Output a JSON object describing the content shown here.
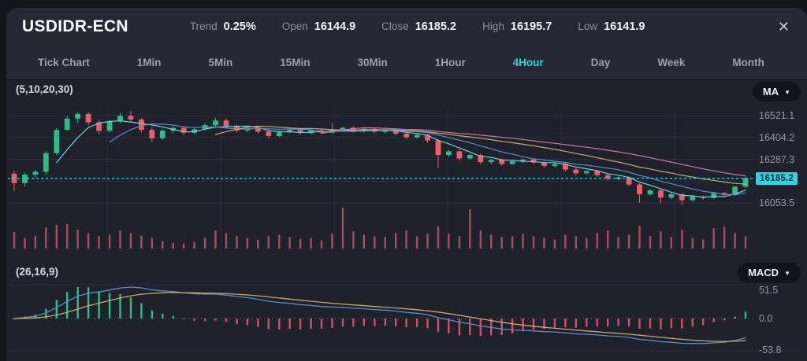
{
  "header": {
    "symbol": "USDIDR-ECN",
    "stats": [
      {
        "label": "Trend",
        "value": "0.25%"
      },
      {
        "label": "Open",
        "value": "16144.9"
      },
      {
        "label": "Close",
        "value": "16185.2"
      },
      {
        "label": "High",
        "value": "16195.7"
      },
      {
        "label": "Low",
        "value": "16141.9"
      }
    ],
    "close_icon": "✕"
  },
  "tabs": [
    {
      "label": "Tick Chart",
      "active": false
    },
    {
      "label": "1Min",
      "active": false
    },
    {
      "label": "5Min",
      "active": false
    },
    {
      "label": "15Min",
      "active": false
    },
    {
      "label": "30Min",
      "active": false
    },
    {
      "label": "1Hour",
      "active": false
    },
    {
      "label": "4Hour",
      "active": true
    },
    {
      "label": "Day",
      "active": false
    },
    {
      "label": "Week",
      "active": false
    },
    {
      "label": "Month",
      "active": false
    }
  ],
  "main_chart": {
    "params_label": "(5,10,20,30)",
    "indicator_button": {
      "label": "MA",
      "icon": "chevron-down"
    },
    "chevron": "▼",
    "axis_labels": [
      "16521.1",
      "16404.2",
      "16287.3",
      "16053.5"
    ],
    "current_price_label": "16185.2"
  },
  "macd_panel": {
    "params_label": "(26,16,9)",
    "indicator_button": {
      "label": "MACD",
      "icon": "chevron-down"
    },
    "chevron": "▼",
    "axis_labels": [
      "51.5",
      "0.0",
      "-53.8"
    ]
  },
  "colors": {
    "outer_bg": "#15161c",
    "window_bg": "#262833",
    "chart_bg": "#1f212b",
    "grid": "#2b2e3a",
    "vgrid": "#272a36",
    "accent_cyan": "#2ed3e8",
    "candle_up": "#2ebd85",
    "candle_down": "#ef5f67",
    "volume_bar": "#a6505e",
    "ma_lines": [
      "#6ccfe0",
      "#5b8dc9",
      "#c9a96d",
      "#c778a8"
    ],
    "macd_line": "#5b8dc9",
    "macd_signal": "#c9a96d",
    "hist_up": "#2ebd85",
    "hist_down": "#d94f5f",
    "zero_line": "#6b7080"
  },
  "chart_data": {
    "type": "candlestick",
    "symbol": "USDIDR-ECN",
    "timeframe": "4Hour",
    "ohlc_note": "candles are [open, high, low, close]",
    "candles": [
      [
        16210,
        16225,
        16115,
        16160
      ],
      [
        16160,
        16215,
        16140,
        16205
      ],
      [
        16205,
        16230,
        16190,
        16220
      ],
      [
        16220,
        16330,
        16205,
        16320
      ],
      [
        16320,
        16455,
        16310,
        16445
      ],
      [
        16445,
        16520,
        16440,
        16505
      ],
      [
        16505,
        16540,
        16480,
        16530
      ],
      [
        16530,
        16540,
        16470,
        16485
      ],
      [
        16485,
        16500,
        16420,
        16440
      ],
      [
        16440,
        16500,
        16430,
        16490
      ],
      [
        16490,
        16535,
        16480,
        16520
      ],
      [
        16520,
        16545,
        16490,
        16500
      ],
      [
        16500,
        16510,
        16430,
        16445
      ],
      [
        16445,
        16460,
        16380,
        16400
      ],
      [
        16400,
        16450,
        16390,
        16440
      ],
      [
        16440,
        16465,
        16425,
        16455
      ],
      [
        16455,
        16465,
        16415,
        16430
      ],
      [
        16430,
        16455,
        16420,
        16448
      ],
      [
        16448,
        16480,
        16440,
        16470
      ],
      [
        16470,
        16510,
        16460,
        16495
      ],
      [
        16495,
        16505,
        16450,
        16465
      ],
      [
        16465,
        16475,
        16430,
        16442
      ],
      [
        16442,
        16460,
        16432,
        16452
      ],
      [
        16452,
        16462,
        16425,
        16435
      ],
      [
        16435,
        16445,
        16400,
        16412
      ],
      [
        16412,
        16440,
        16405,
        16432
      ],
      [
        16432,
        16452,
        16425,
        16445
      ],
      [
        16445,
        16455,
        16418,
        16428
      ],
      [
        16428,
        16448,
        16420,
        16442
      ],
      [
        16442,
        16450,
        16420,
        16430
      ],
      [
        16430,
        16482,
        16425,
        16448
      ],
      [
        16448,
        16462,
        16438,
        16456
      ],
      [
        16456,
        16464,
        16430,
        16438
      ],
      [
        16438,
        16455,
        16428,
        16450
      ],
      [
        16450,
        16458,
        16425,
        16434
      ],
      [
        16434,
        16450,
        16426,
        16444
      ],
      [
        16444,
        16450,
        16415,
        16424
      ],
      [
        16424,
        16432,
        16395,
        16405
      ],
      [
        16405,
        16425,
        16398,
        16418
      ],
      [
        16418,
        16424,
        16375,
        16388
      ],
      [
        16388,
        16395,
        16240,
        16310
      ],
      [
        16310,
        16338,
        16300,
        16330
      ],
      [
        16330,
        16340,
        16280,
        16292
      ],
      [
        16292,
        16318,
        16285,
        16310
      ],
      [
        16310,
        16318,
        16262,
        16272
      ],
      [
        16272,
        16292,
        16262,
        16284
      ],
      [
        16284,
        16292,
        16252,
        16262
      ],
      [
        16262,
        16282,
        16255,
        16276
      ],
      [
        16276,
        16292,
        16268,
        16286
      ],
      [
        16286,
        16294,
        16262,
        16270
      ],
      [
        16270,
        16278,
        16242,
        16252
      ],
      [
        16252,
        16268,
        16244,
        16262
      ],
      [
        16262,
        16268,
        16222,
        16232
      ],
      [
        16232,
        16240,
        16200,
        16212
      ],
      [
        16212,
        16230,
        16205,
        16224
      ],
      [
        16224,
        16230,
        16192,
        16202
      ],
      [
        16202,
        16210,
        16172,
        16182
      ],
      [
        16182,
        16196,
        16174,
        16190
      ],
      [
        16190,
        16196,
        16142,
        16152
      ],
      [
        16152,
        16158,
        16055,
        16100
      ],
      [
        16100,
        16128,
        16092,
        16120
      ],
      [
        16120,
        16126,
        16052,
        16082
      ],
      [
        16082,
        16108,
        16074,
        16100
      ],
      [
        16100,
        16106,
        16044,
        16068
      ],
      [
        16068,
        16094,
        16060,
        16088
      ],
      [
        16088,
        16094,
        16070,
        16080
      ],
      [
        16080,
        16112,
        16074,
        16106
      ],
      [
        16106,
        16112,
        16088,
        16096
      ],
      [
        16096,
        16146,
        16090,
        16140
      ],
      [
        16140,
        16195,
        16134,
        16186
      ]
    ],
    "volumes": [
      40,
      26,
      30,
      52,
      58,
      60,
      46,
      38,
      30,
      34,
      44,
      38,
      32,
      26,
      18,
      14,
      12,
      16,
      26,
      44,
      38,
      30,
      26,
      22,
      30,
      34,
      28,
      24,
      26,
      20,
      36,
      100,
      42,
      34,
      30,
      28,
      38,
      44,
      30,
      36,
      54,
      36,
      30,
      96,
      44,
      34,
      28,
      30,
      36,
      30,
      26,
      22,
      34,
      30,
      26,
      38,
      44,
      28,
      34,
      56,
      30,
      42,
      28,
      46,
      26,
      22,
      50,
      54,
      38,
      30
    ],
    "price_gridlines": [
      16521.1,
      16404.2,
      16287.3,
      16170.4,
      16053.5
    ],
    "current_price": 16185.2,
    "ma_periods": [
      5,
      10,
      20,
      30
    ],
    "macd_params": [
      26,
      16,
      9
    ],
    "macd_axis": [
      51.5,
      0.0,
      -53.8
    ],
    "legend_position": "none",
    "grid": "on"
  }
}
